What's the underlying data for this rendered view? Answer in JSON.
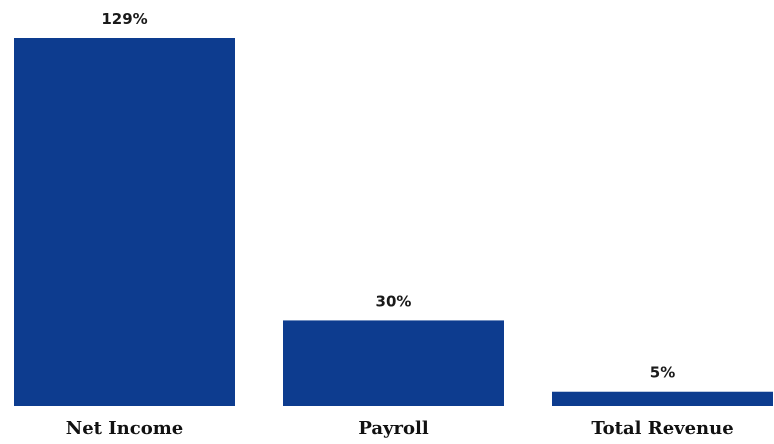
{
  "chart_data": {
    "type": "bar",
    "categories": [
      "Net Income",
      "Payroll",
      "Total Revenue"
    ],
    "values": [
      129,
      30,
      5
    ],
    "value_labels": [
      "129%",
      "30%",
      "5%"
    ],
    "unit": "%",
    "title": "",
    "xlabel": "",
    "ylabel": "",
    "ylim": [
      0,
      129
    ],
    "grid": false,
    "legend": "none",
    "bar_color": "#0d3c8f"
  }
}
